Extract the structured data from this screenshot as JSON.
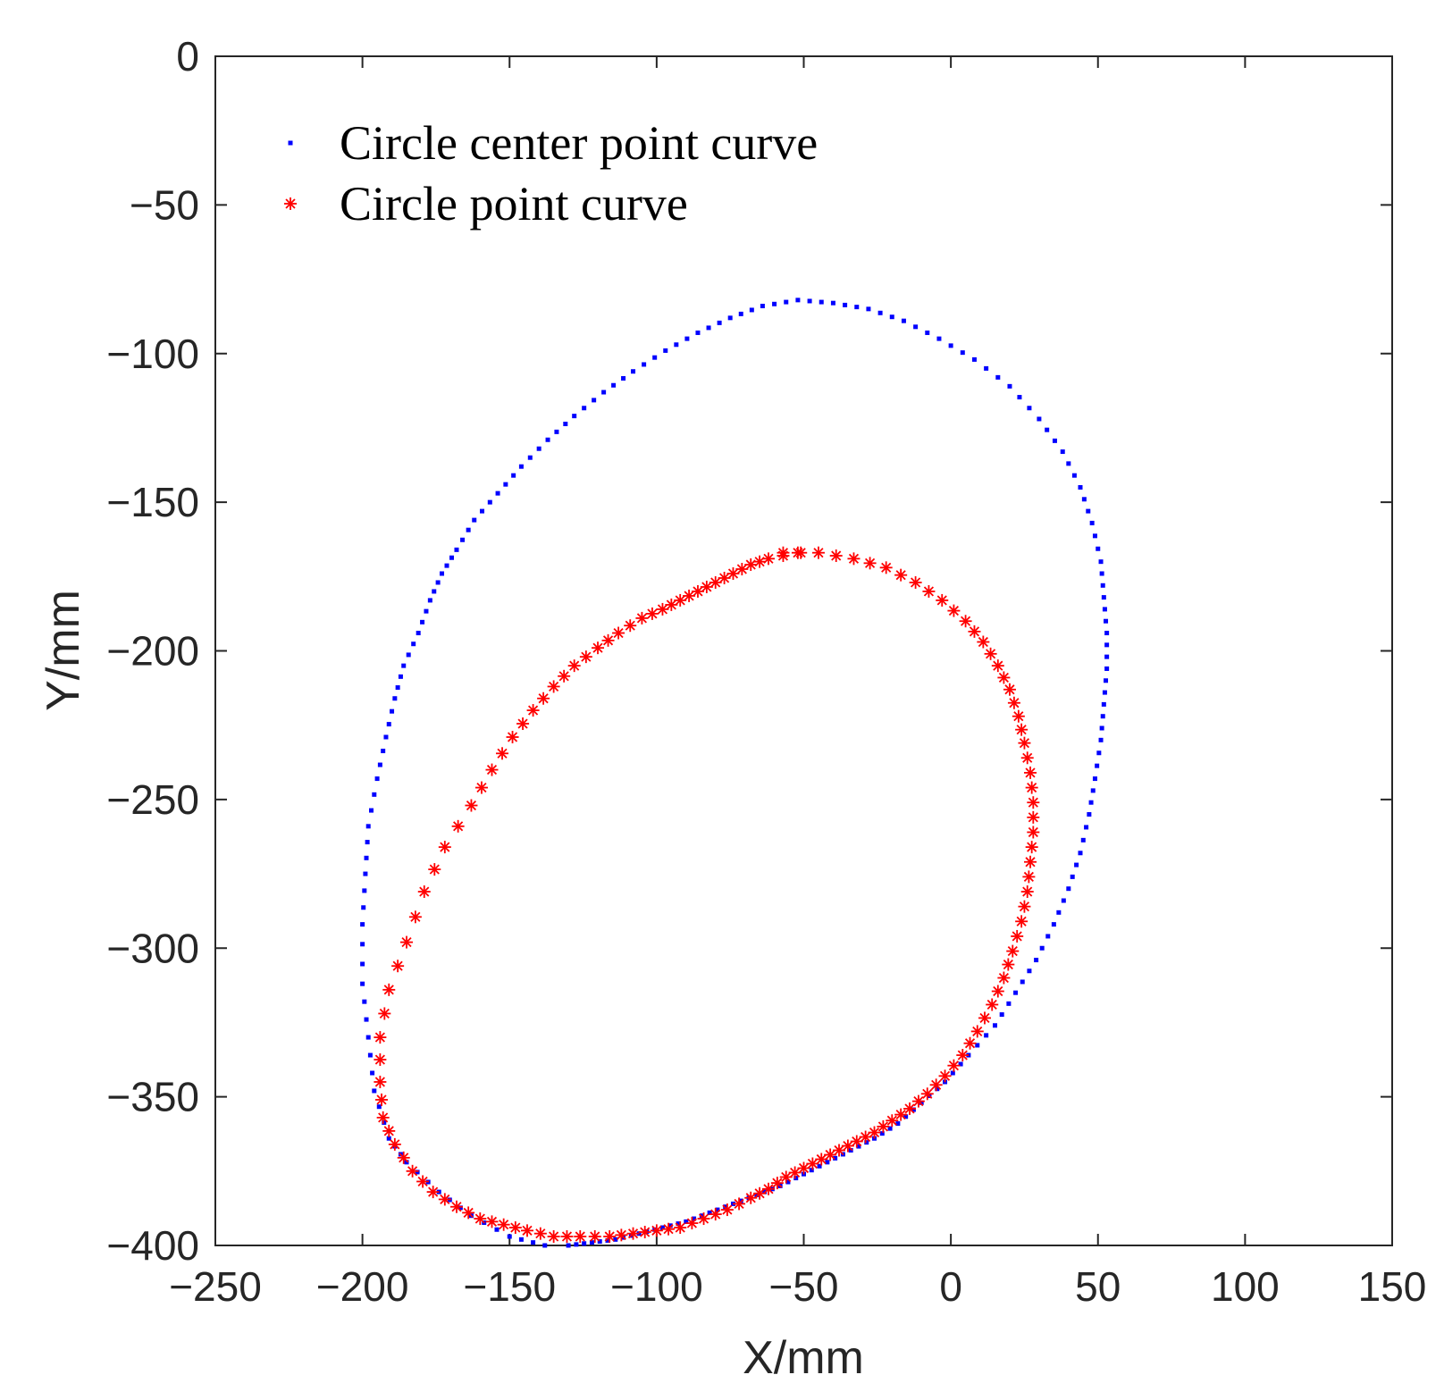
{
  "chart_data": {
    "type": "scatter",
    "title": "",
    "xlabel": "X/mm",
    "ylabel": "Y/mm",
    "xlim": [
      -250,
      150
    ],
    "ylim": [
      -400,
      0
    ],
    "xticks": [
      "−250",
      "−200",
      "−150",
      "−100",
      "−50",
      "0",
      "50",
      "100",
      "150"
    ],
    "yticks": [
      "0",
      "−50",
      "−100",
      "−150",
      "−200",
      "−250",
      "−300",
      "−350",
      "−400"
    ],
    "grid": false,
    "box": true,
    "legend": {
      "position": "top-left",
      "boxed": false
    },
    "series": [
      {
        "name": "Circle center point curve",
        "color": "#0000ff",
        "marker": "dot",
        "points": [
          [
            -138,
            -400
          ],
          [
            -150,
            -397
          ],
          [
            -163,
            -390
          ],
          [
            -174,
            -382
          ],
          [
            -185,
            -372
          ],
          [
            -191,
            -364
          ],
          [
            -196,
            -348
          ],
          [
            -198,
            -330
          ],
          [
            -200,
            -312
          ],
          [
            -200,
            -292
          ],
          [
            -199,
            -275
          ],
          [
            -198,
            -259
          ],
          [
            -195,
            -243
          ],
          [
            -192,
            -229
          ],
          [
            -189,
            -216
          ],
          [
            -186,
            -205
          ],
          [
            -181,
            -194
          ],
          [
            -177,
            -183
          ],
          [
            -173,
            -174
          ],
          [
            -168,
            -166
          ],
          [
            -162,
            -156
          ],
          [
            -154,
            -147
          ],
          [
            -146,
            -138
          ],
          [
            -137,
            -129
          ],
          [
            -128,
            -121
          ],
          [
            -118,
            -113
          ],
          [
            -108,
            -106
          ],
          [
            -97,
            -99
          ],
          [
            -86,
            -93
          ],
          [
            -75,
            -88
          ],
          [
            -64,
            -84
          ],
          [
            -52,
            -82
          ],
          [
            -40,
            -83
          ],
          [
            -28,
            -85
          ],
          [
            -16,
            -89
          ],
          [
            -4,
            -95
          ],
          [
            8,
            -102
          ],
          [
            20,
            -111
          ],
          [
            30,
            -122
          ],
          [
            38,
            -133
          ],
          [
            44,
            -145
          ],
          [
            48,
            -157
          ],
          [
            51,
            -170
          ],
          [
            52,
            -182
          ],
          [
            53,
            -194
          ],
          [
            53,
            -206
          ],
          [
            52,
            -218
          ],
          [
            51,
            -230
          ],
          [
            49,
            -243
          ],
          [
            47,
            -255
          ],
          [
            44,
            -268
          ],
          [
            40,
            -280
          ],
          [
            35,
            -292
          ],
          [
            29,
            -304
          ],
          [
            22,
            -315
          ],
          [
            15,
            -326
          ],
          [
            6,
            -336
          ],
          [
            -2,
            -345
          ],
          [
            -10,
            -352
          ],
          [
            -18,
            -359
          ],
          [
            -26,
            -364
          ],
          [
            -34,
            -368
          ],
          [
            -42,
            -372
          ],
          [
            -50,
            -376
          ],
          [
            -58,
            -380
          ],
          [
            -66,
            -383
          ],
          [
            -74,
            -386
          ],
          [
            -82,
            -389
          ],
          [
            -90,
            -392
          ],
          [
            -98,
            -394
          ],
          [
            -106,
            -396
          ],
          [
            -114,
            -398
          ],
          [
            -122,
            -399
          ],
          [
            -130,
            -400
          ]
        ]
      },
      {
        "name": "Circle point curve",
        "color": "#ff0000",
        "marker": "asterisk",
        "points": [
          [
            -57,
            -167
          ],
          [
            -45,
            -167
          ],
          [
            -33,
            -169
          ],
          [
            -22,
            -172
          ],
          [
            -12,
            -177
          ],
          [
            -3,
            -183
          ],
          [
            5,
            -190
          ],
          [
            11,
            -197
          ],
          [
            16,
            -205
          ],
          [
            20,
            -213
          ],
          [
            23,
            -222
          ],
          [
            25,
            -231
          ],
          [
            27,
            -241
          ],
          [
            28,
            -251
          ],
          [
            28,
            -261
          ],
          [
            27,
            -271
          ],
          [
            26,
            -281
          ],
          [
            24,
            -291
          ],
          [
            21,
            -301
          ],
          [
            18,
            -310
          ],
          [
            14,
            -319
          ],
          [
            9,
            -328
          ],
          [
            4,
            -336
          ],
          [
            -2,
            -343
          ],
          [
            -8,
            -349
          ],
          [
            -14,
            -354
          ],
          [
            -20,
            -358
          ],
          [
            -26,
            -362
          ],
          [
            -32,
            -365
          ],
          [
            -38,
            -368
          ],
          [
            -44,
            -371
          ],
          [
            -50,
            -374
          ],
          [
            -56,
            -377
          ],
          [
            -62,
            -381
          ],
          [
            -68,
            -384
          ],
          [
            -76,
            -388
          ],
          [
            -84,
            -391
          ],
          [
            -92,
            -394
          ],
          [
            -100,
            -395
          ],
          [
            -108,
            -396
          ],
          [
            -116,
            -397
          ],
          [
            -126,
            -397
          ],
          [
            -135,
            -397
          ],
          [
            -144,
            -395
          ],
          [
            -152,
            -393
          ],
          [
            -160,
            -391
          ],
          [
            -168,
            -387
          ],
          [
            -176,
            -382
          ],
          [
            -183,
            -375
          ],
          [
            -189,
            -366
          ],
          [
            -193,
            -357
          ],
          [
            -194,
            -345
          ],
          [
            -194,
            -330
          ],
          [
            -191,
            -314
          ],
          [
            -185,
            -298
          ],
          [
            -179,
            -281
          ],
          [
            -172,
            -266
          ],
          [
            -163,
            -252
          ],
          [
            -156,
            -240
          ],
          [
            -149,
            -229
          ],
          [
            -142,
            -220
          ],
          [
            -135,
            -212
          ],
          [
            -128,
            -205
          ],
          [
            -120,
            -199
          ],
          [
            -113,
            -194
          ],
          [
            -105,
            -189
          ],
          [
            -98,
            -186
          ],
          [
            -92,
            -183
          ],
          [
            -86,
            -180
          ],
          [
            -80,
            -177
          ],
          [
            -74,
            -174
          ],
          [
            -68,
            -171
          ],
          [
            -62,
            -169
          ],
          [
            -52,
            -167
          ]
        ]
      }
    ]
  }
}
